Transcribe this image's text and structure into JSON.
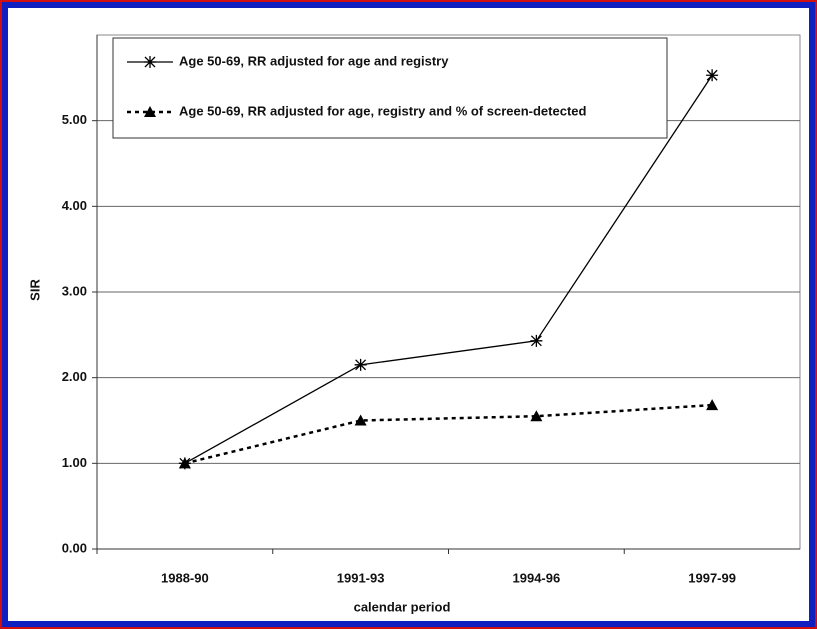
{
  "chart_data": {
    "type": "line",
    "categories": [
      "1988-90",
      "1991-93",
      "1994-96",
      "1997-99"
    ],
    "series": [
      {
        "name": "Age 50-69, RR adjusted for age and registry",
        "color": "#000000",
        "marker": "asterisk",
        "dash": "solid",
        "values": [
          1.0,
          2.15,
          2.43,
          5.53
        ]
      },
      {
        "name": "Age 50-69, RR adjusted for age, registry and % of screen-detected",
        "color": "#000000",
        "marker": "triangle",
        "dash": "dotted",
        "values": [
          1.0,
          1.5,
          1.55,
          1.68
        ]
      }
    ],
    "y_label": "SIR",
    "x_label": "calendar period",
    "ylim": [
      0,
      6
    ],
    "yticks": [
      {
        "value": 0,
        "label": "0.00"
      },
      {
        "value": 1,
        "label": "1.00"
      },
      {
        "value": 2,
        "label": "2.00"
      },
      {
        "value": 3,
        "label": "3.00"
      },
      {
        "value": 4,
        "label": "4.00"
      },
      {
        "value": 5,
        "label": "5.00"
      }
    ],
    "grid": true,
    "legend": "top-left"
  }
}
